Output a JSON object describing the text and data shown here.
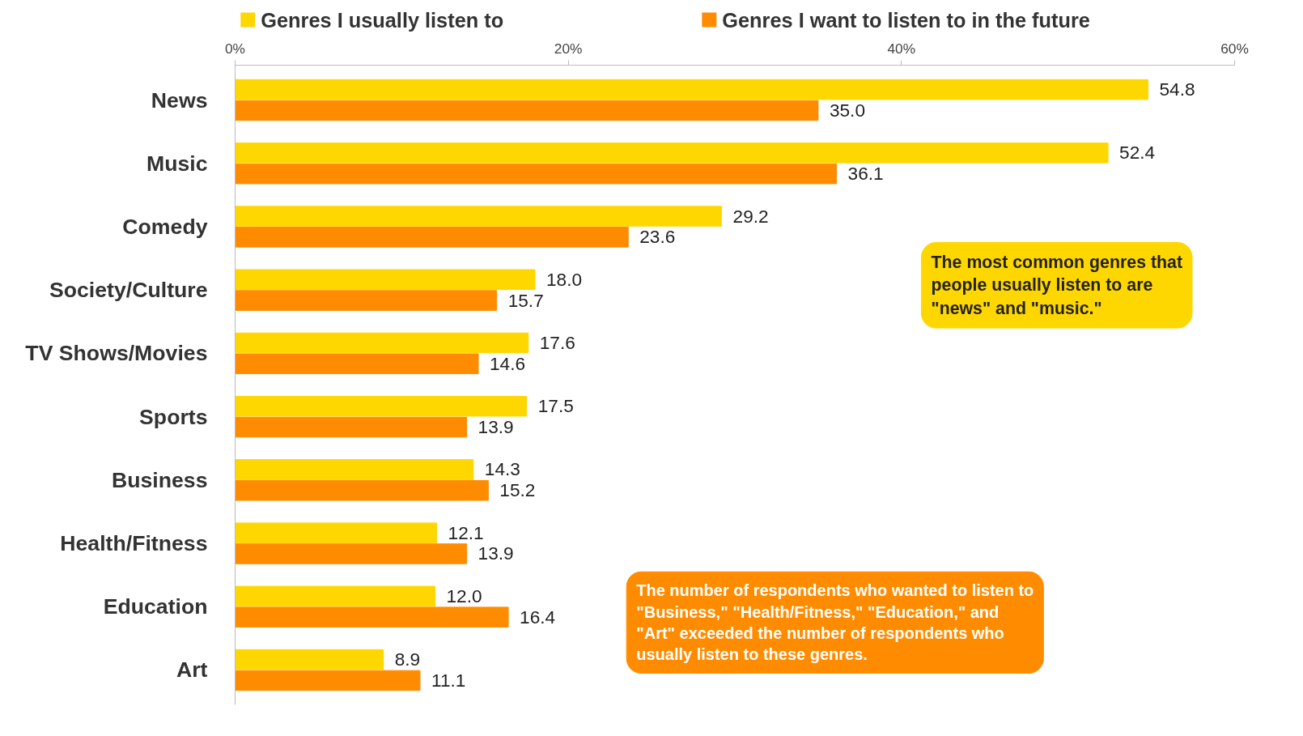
{
  "chart_data": {
    "type": "bar",
    "orientation": "horizontal",
    "categories": [
      "News",
      "Music",
      "Comedy",
      "Society/Culture",
      "TV Shows/Movies",
      "Sports",
      "Business",
      "Health/Fitness",
      "Education",
      "Art"
    ],
    "series": [
      {
        "name": "Genres I usually listen to",
        "color": "#ffd700",
        "values": [
          54.8,
          52.4,
          29.2,
          18.0,
          17.6,
          17.5,
          14.3,
          12.1,
          12.0,
          8.9
        ],
        "value_labels": [
          "54.8",
          "52.4",
          "29.2",
          "18.0",
          "17.6",
          "17.5",
          "14.3",
          "12.1",
          "12.0",
          "8.9"
        ]
      },
      {
        "name": "Genres I want to listen to in the future",
        "color": "#ff8c00",
        "values": [
          35.0,
          36.1,
          23.6,
          15.7,
          14.6,
          13.9,
          15.2,
          13.9,
          16.4,
          11.1
        ],
        "value_labels": [
          "35.0",
          "36.1",
          "23.6",
          "15.7",
          "14.6",
          "13.9",
          "15.2",
          "13.9",
          "16.4",
          "11.1"
        ]
      }
    ],
    "xlim": [
      0,
      60
    ],
    "xticks": [
      {
        "value": 0,
        "label": "0%"
      },
      {
        "value": 20,
        "label": "20%"
      },
      {
        "value": 40,
        "label": "40%"
      },
      {
        "value": 60,
        "label": "60%"
      }
    ],
    "legend": "top",
    "grid": false,
    "annotations": [
      "The most common genres that people usually listen to are \"news\" and \"music.\"",
      "The number of respondents who wanted to listen to \"Business,\" \"Health/Fitness,\" \"Education,\" and \"Art\" exceeded the number of respondents who usually listen to these genres."
    ]
  }
}
